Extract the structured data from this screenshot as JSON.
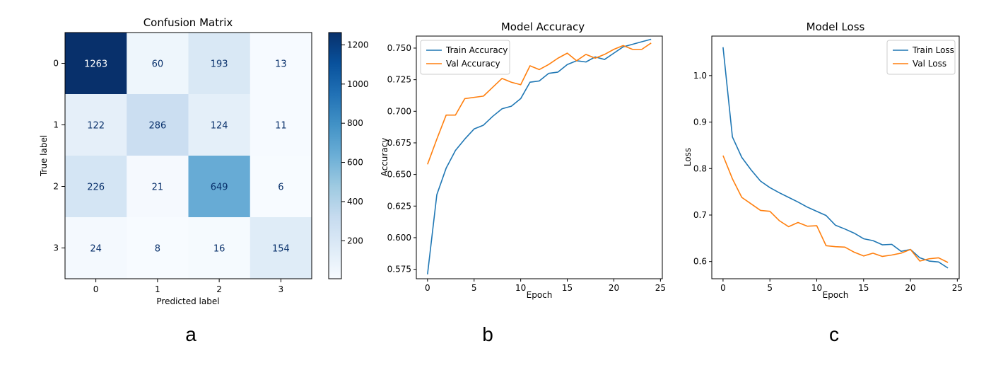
{
  "panel_labels": [
    "a",
    "b",
    "c"
  ],
  "chart_data": [
    {
      "type": "heatmap",
      "title": "Confusion Matrix",
      "xlabel": "Predicted label",
      "ylabel": "True label",
      "x_categories": [
        "0",
        "1",
        "2",
        "3"
      ],
      "y_categories": [
        "0",
        "1",
        "2",
        "3"
      ],
      "matrix": [
        [
          1263,
          60,
          193,
          13
        ],
        [
          122,
          286,
          124,
          11
        ],
        [
          226,
          21,
          649,
          6
        ],
        [
          24,
          8,
          16,
          154
        ]
      ],
      "colorscale": "Blues",
      "colorbar_range": [
        6,
        1263
      ],
      "colorbar_ticks": [
        "200",
        "400",
        "600",
        "800",
        "1000",
        "1200"
      ],
      "colorbar_tick_values": [
        200,
        400,
        600,
        800,
        1000,
        1200
      ]
    },
    {
      "type": "line",
      "title": "Model Accuracy",
      "xlabel": "Epoch",
      "ylabel": "Accuracy",
      "xlim": [
        -1.2,
        25.2
      ],
      "ylim": [
        0.5675,
        0.7595
      ],
      "x_ticks": [
        0,
        5,
        10,
        15,
        20,
        25
      ],
      "x_tick_labels": [
        "0",
        "5",
        "10",
        "15",
        "20",
        "25"
      ],
      "y_ticks": [
        0.575,
        0.6,
        0.625,
        0.65,
        0.675,
        0.7,
        0.725,
        0.75
      ],
      "y_tick_labels": [
        "0.575",
        "0.600",
        "0.625",
        "0.650",
        "0.675",
        "0.700",
        "0.725",
        "0.750"
      ],
      "legend_position": "top-left",
      "series": [
        {
          "name": "Train Accuracy",
          "color": "#1f77b4",
          "values": [
            0.571,
            0.634,
            0.655,
            0.669,
            0.678,
            0.686,
            0.689,
            0.696,
            0.702,
            0.704,
            0.71,
            0.723,
            0.724,
            0.73,
            0.731,
            0.737,
            0.74,
            0.739,
            0.743,
            0.741,
            0.746,
            0.751,
            0.753,
            0.755,
            0.757
          ]
        },
        {
          "name": "Val Accuracy",
          "color": "#ff7f0e",
          "values": [
            0.658,
            0.678,
            0.697,
            0.697,
            0.71,
            0.711,
            0.712,
            0.719,
            0.726,
            0.723,
            0.721,
            0.736,
            0.733,
            0.737,
            0.742,
            0.746,
            0.74,
            0.745,
            0.742,
            0.745,
            0.749,
            0.752,
            0.749,
            0.749,
            0.754
          ]
        }
      ]
    },
    {
      "type": "line",
      "title": "Model Loss",
      "xlabel": "Epoch",
      "ylabel": "Loss",
      "xlim": [
        -1.2,
        25.2
      ],
      "ylim": [
        0.563,
        1.085
      ],
      "x_ticks": [
        0,
        5,
        10,
        15,
        20,
        25
      ],
      "x_tick_labels": [
        "0",
        "5",
        "10",
        "15",
        "20",
        "25"
      ],
      "y_ticks": [
        0.6,
        0.7,
        0.8,
        0.9,
        1.0
      ],
      "y_tick_labels": [
        "0.6",
        "0.7",
        "0.8",
        "0.9",
        "1.0"
      ],
      "legend_position": "top-right",
      "series": [
        {
          "name": "Train Loss",
          "color": "#1f77b4",
          "values": [
            1.061,
            0.868,
            0.824,
            0.797,
            0.773,
            0.759,
            0.748,
            0.738,
            0.728,
            0.717,
            0.708,
            0.699,
            0.678,
            0.67,
            0.661,
            0.649,
            0.645,
            0.636,
            0.637,
            0.622,
            0.626,
            0.608,
            0.601,
            0.599,
            0.586
          ]
        },
        {
          "name": "Val Loss",
          "color": "#ff7f0e",
          "values": [
            0.828,
            0.778,
            0.738,
            0.724,
            0.71,
            0.708,
            0.688,
            0.675,
            0.684,
            0.676,
            0.677,
            0.634,
            0.632,
            0.631,
            0.62,
            0.612,
            0.618,
            0.611,
            0.614,
            0.618,
            0.626,
            0.601,
            0.606,
            0.608,
            0.598
          ]
        }
      ]
    }
  ]
}
